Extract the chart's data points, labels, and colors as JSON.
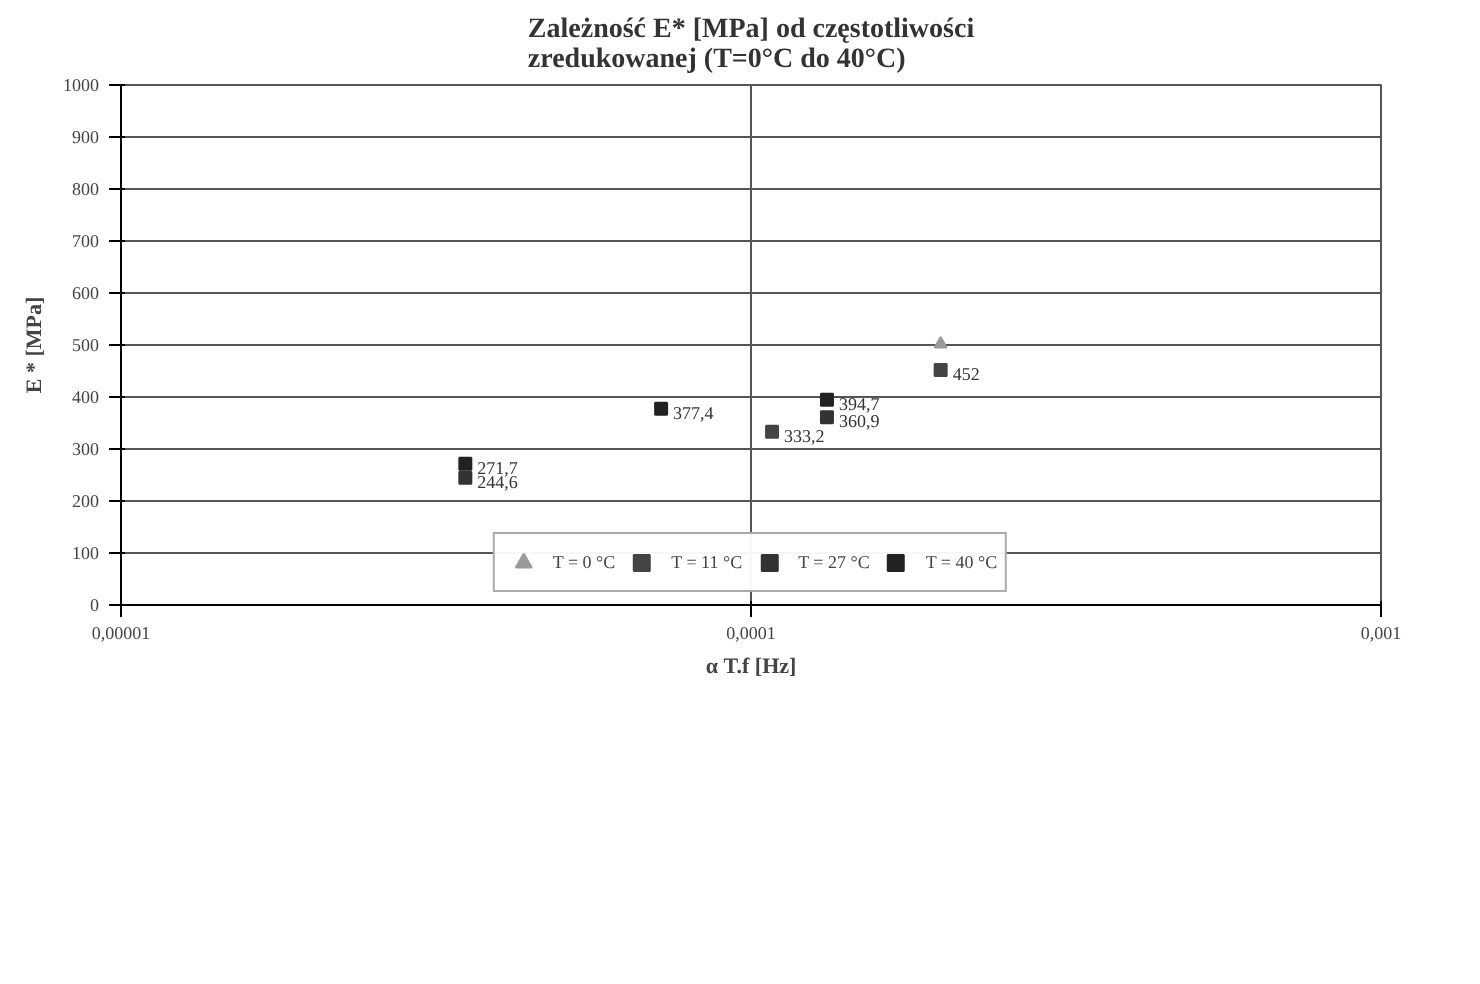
{
  "chart_data": {
    "type": "scatter",
    "title": "Zależność E* [MPa] od częstotliwości\nzredukowanej  (T=0°C do 40°C)",
    "xlabel": "α T.f [Hz]",
    "ylabel": "E * [MPa]",
    "log": "x",
    "xlim": [
      1e-05,
      0.001
    ],
    "xticks": [
      {
        "value": 1e-05,
        "label": "0,00001"
      },
      {
        "value": 0.0001,
        "label": "0,0001"
      },
      {
        "value": 0.001,
        "label": "0,001"
      }
    ],
    "ylim": [
      0,
      1000
    ],
    "yticks": [
      0,
      100,
      200,
      300,
      400,
      500,
      600,
      700,
      800,
      900,
      1000
    ],
    "grid": true,
    "legend": "bottom",
    "series": [
      {
        "name": "T = 0 °C",
        "color": "#9a9a9a",
        "marker": "triangle",
        "x": [
          0.0002
        ],
        "values": [
          502
        ],
        "value_labels": [
          null
        ]
      },
      {
        "name": "T = 11 °C",
        "color": "#444444",
        "marker": "square",
        "x": [
          0.000108,
          0.0002
        ],
        "values": [
          333.2,
          452
        ],
        "value_labels": [
          "333,2",
          "452"
        ]
      },
      {
        "name": "T = 27 °C",
        "color": "#333333",
        "marker": "square",
        "x": [
          3.52e-05,
          0.000132
        ],
        "values": [
          244.6,
          360.9
        ],
        "value_labels": [
          "244,6",
          "360,9"
        ]
      },
      {
        "name": "T = 40 °C",
        "color": "#222222",
        "marker": "square",
        "x": [
          3.52e-05,
          7.2e-05,
          0.000132
        ],
        "values": [
          271.7,
          377.4,
          394.7
        ],
        "value_labels": [
          "271,7",
          "377,4",
          "394,7"
        ]
      }
    ]
  }
}
